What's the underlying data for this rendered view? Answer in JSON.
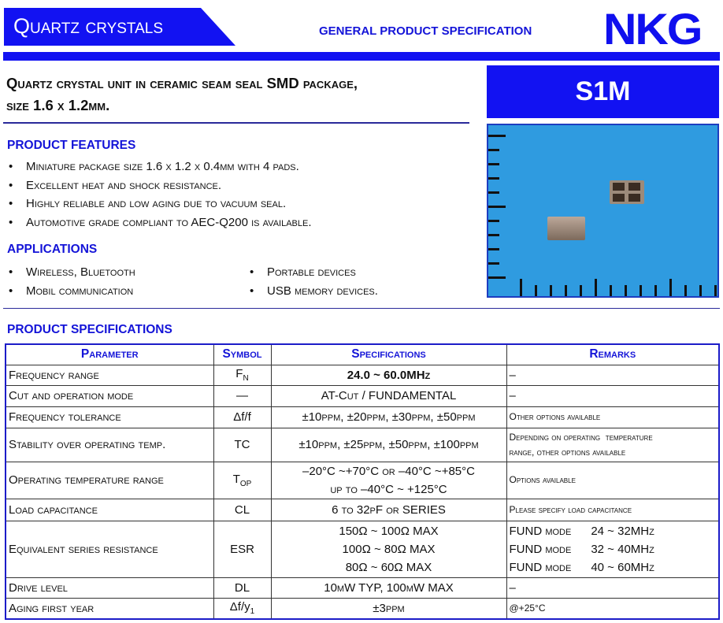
{
  "header": {
    "category": "Quartz crystals",
    "subtitle": "GENERAL PRODUCT SPECIFICATION",
    "logo": "NKG"
  },
  "title": {
    "line1": "Quartz crystal unit in ceramic seam seal SMD package,",
    "line2": "size 1.6 x 1.2mm."
  },
  "model": "S1M",
  "features": {
    "heading": "PRODUCT FEATURES",
    "items": [
      "Miniature  package size 1.6 x 1.2 x 0.4mm with 4 pads.",
      "Excellent heat and shock resistance.",
      "Highly reliable and low aging due to vacuum seal.",
      "Automotive grade compliant to AEC-Q200 is available."
    ]
  },
  "applications": {
    "heading": "APPLICATIONS",
    "col1": [
      "Wireless, Bluetooth",
      "Mobil communication"
    ],
    "col2": [
      "Portable devices",
      "USB memory devices."
    ]
  },
  "specs": {
    "heading": "PRODUCT SPECIFICATIONS",
    "headers": [
      "Parameter",
      "Symbol",
      "Specifications",
      "Remarks"
    ],
    "rows": [
      {
        "p": "Frequency range",
        "s": "F",
        "sub": "N",
        "v": [
          "24.0 ~ 60.0MHz"
        ],
        "r": [
          "–"
        ]
      },
      {
        "p": "Cut and operation mode",
        "s": "—",
        "sub": "",
        "v": [
          "AT-Cut / FUNDAMENTAL"
        ],
        "r": [
          "–"
        ]
      },
      {
        "p": "Frequency tolerance",
        "s": "Δf/f",
        "sub": "",
        "v": [
          "±10ppm, ±20ppm, ±30ppm, ±50ppm"
        ],
        "r": [
          "Other options available"
        ]
      },
      {
        "p": "Stability over operating temp.",
        "s": "TC",
        "sub": "",
        "v": [
          "±10ppm, ±25ppm, ±50ppm, ±100ppm"
        ],
        "r": [
          "Depending on operating  temperature",
          "range, other options available"
        ]
      },
      {
        "p": "Operating temperature range",
        "s": "T",
        "sub": "OP",
        "v": [
          "–20°C ~+70°C  or  –40°C ~+85°C",
          "up to –40°C ~ +125°C"
        ],
        "r": [
          "Options available"
        ]
      },
      {
        "p": "Load capacitance",
        "s": "CL",
        "sub": "",
        "v": [
          "6 to 32pF or SERIES"
        ],
        "r": [
          "Please specify load capacitance"
        ]
      },
      {
        "p": "Equivalent series resistance",
        "s": "ESR",
        "sub": "",
        "v": [
          "150Ω ~ 100Ω MAX",
          "100Ω ~ 80Ω MAX",
          "80Ω ~ 60Ω MAX"
        ],
        "r": [
          "FUND mode      24 ~ 32MHz",
          "FUND mode      32 ~ 40MHz",
          "FUND mode      40 ~ 60MHz"
        ]
      },
      {
        "p": "Drive level",
        "s": "DL",
        "sub": "",
        "v": [
          "10µW TYP,  100µW MAX"
        ],
        "r": [
          "–"
        ]
      },
      {
        "p": "Aging first year",
        "s": "Δf/y",
        "sub": "1",
        "v": [
          "±3ppm"
        ],
        "r": [
          "@+25°C"
        ]
      }
    ]
  },
  "colors": {
    "brand_blue": "#1212f2",
    "heading_blue": "#1414d8"
  }
}
